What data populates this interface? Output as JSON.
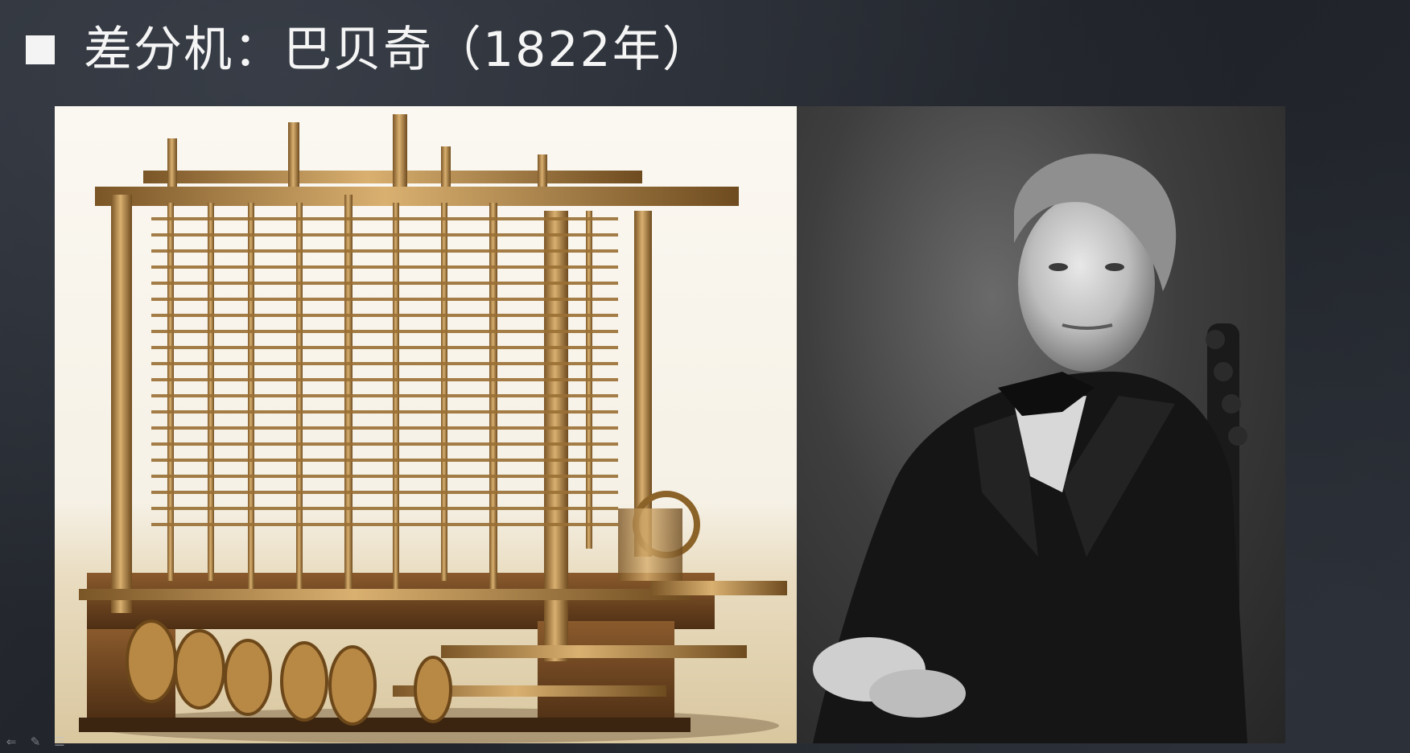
{
  "slide": {
    "title": "差分机：巴贝奇（1822年）"
  },
  "images": {
    "left": {
      "subject": "difference-engine"
    },
    "right": {
      "subject": "portrait"
    }
  },
  "toolbar": {
    "icons": [
      "back-arrow-icon",
      "pen-icon",
      "menu-icon"
    ]
  },
  "colors": {
    "background": "#23272d",
    "title_text": "#f5f5f5",
    "bullet": "#f4f4f4",
    "brass": "#b8894a"
  }
}
